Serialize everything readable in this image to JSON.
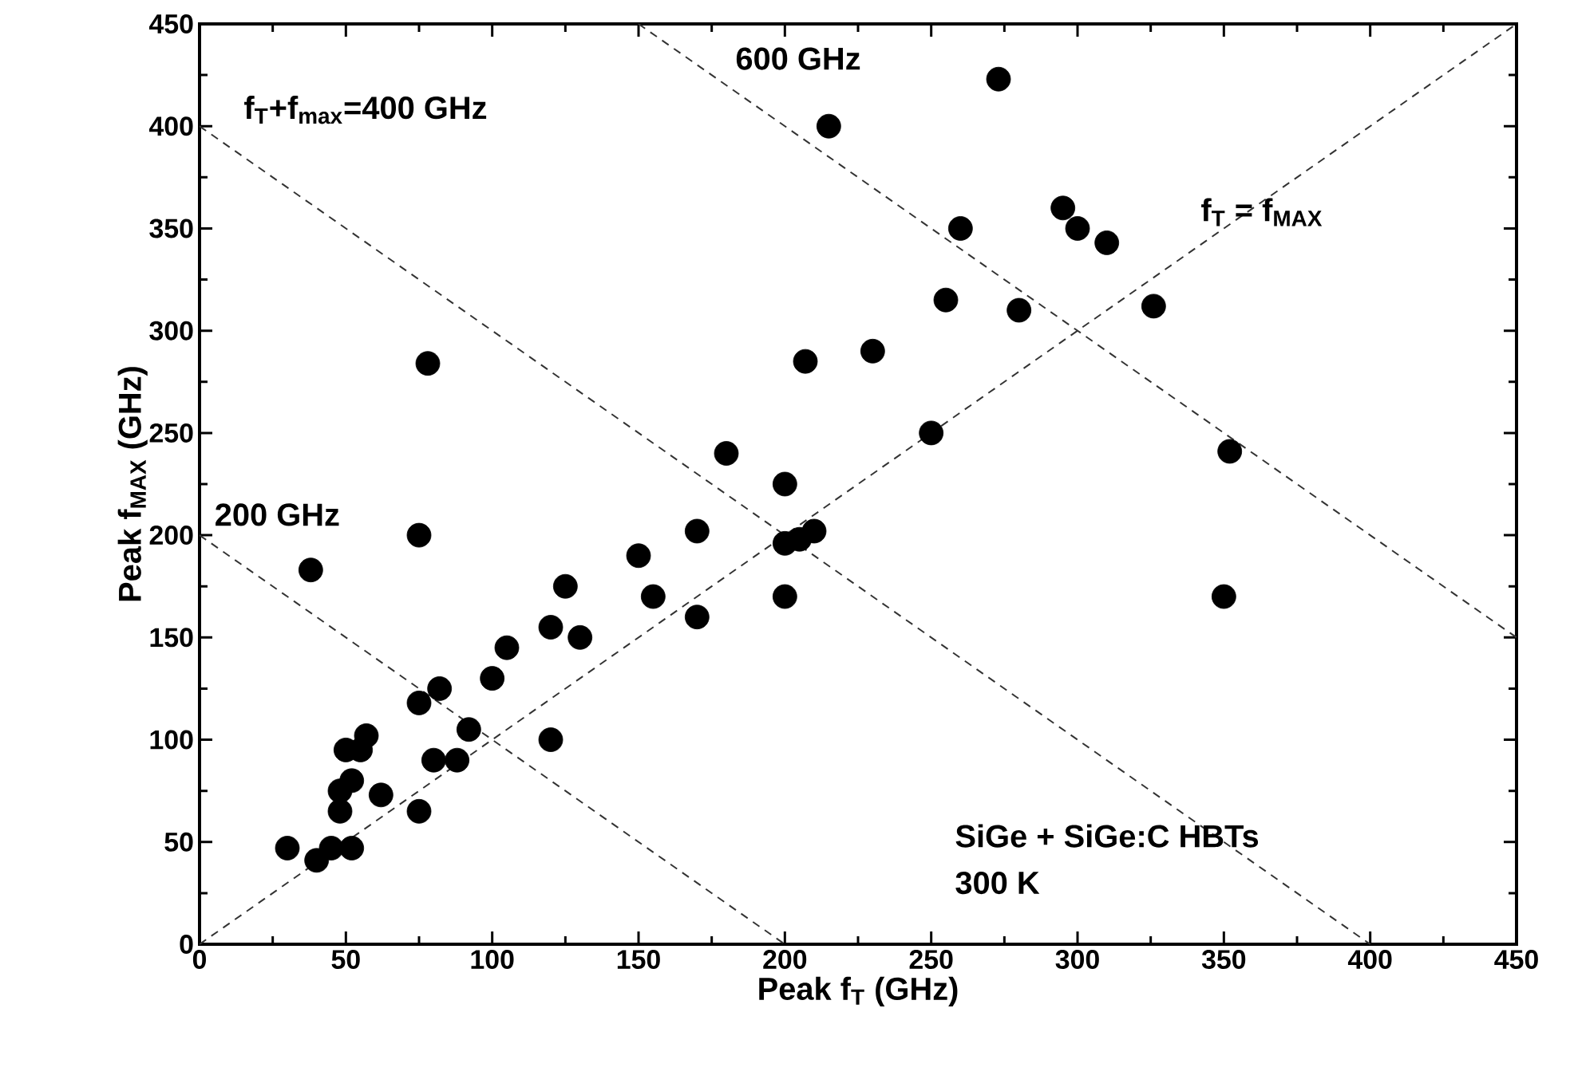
{
  "chart_data": {
    "type": "scatter",
    "xlabel": "Peak f$_{T}$ (GHz)",
    "ylabel": "Peak f$_{MAX}$ (GHz)",
    "xlim": [
      0,
      450
    ],
    "ylim": [
      0,
      450
    ],
    "xticks": [
      0,
      50,
      100,
      150,
      200,
      250,
      300,
      350,
      400,
      450
    ],
    "yticks": [
      0,
      50,
      100,
      150,
      200,
      250,
      300,
      350,
      400,
      450
    ],
    "series": [
      {
        "color": "#000000",
        "marker": "circle",
        "x": [
          30,
          38,
          40,
          45,
          48,
          48,
          50,
          52,
          52,
          55,
          57,
          62,
          75,
          75,
          75,
          78,
          80,
          82,
          88,
          92,
          100,
          105,
          120,
          120,
          125,
          130,
          150,
          155,
          170,
          170,
          180,
          200,
          200,
          200,
          205,
          207,
          210,
          215,
          230,
          250,
          255,
          260,
          273,
          280,
          295,
          300,
          310,
          326,
          350,
          352
        ],
        "values": [
          47,
          183,
          41,
          47,
          65,
          75,
          95,
          80,
          47,
          95,
          102,
          73,
          65,
          118,
          200,
          284,
          90,
          125,
          90,
          105,
          130,
          145,
          100,
          155,
          175,
          150,
          190,
          170,
          160,
          202,
          240,
          170,
          196,
          225,
          198,
          285,
          202,
          400,
          290,
          250,
          315,
          350,
          423,
          310,
          360,
          350,
          343,
          312,
          170,
          241
        ]
      },
      {
        "type": "line",
        "color": "#333333",
        "line_style": "dashed",
        "marker": "none",
        "x": [
          0,
          450
        ],
        "values": [
          0,
          450
        ]
      },
      {
        "type": "line",
        "color": "#333333",
        "line_style": "dashed",
        "marker": "none",
        "x": [
          0,
          200
        ],
        "values": [
          200,
          0
        ]
      },
      {
        "type": "line",
        "color": "#333333",
        "line_style": "dashed",
        "marker": "none",
        "x": [
          0,
          400
        ],
        "values": [
          400,
          0
        ]
      },
      {
        "type": "line",
        "color": "#333333",
        "line_style": "dashed",
        "marker": "none",
        "x": [
          150,
          450
        ],
        "values": [
          450,
          150
        ]
      }
    ],
    "annotations": [
      "f$_{T}$+f$_{max}$=400 GHz",
      "600 GHz",
      "200 GHz",
      "f$_{T}$ = f$_{MAX}$",
      "SiGe + SiGe:C HBTs",
      "300 K"
    ]
  }
}
